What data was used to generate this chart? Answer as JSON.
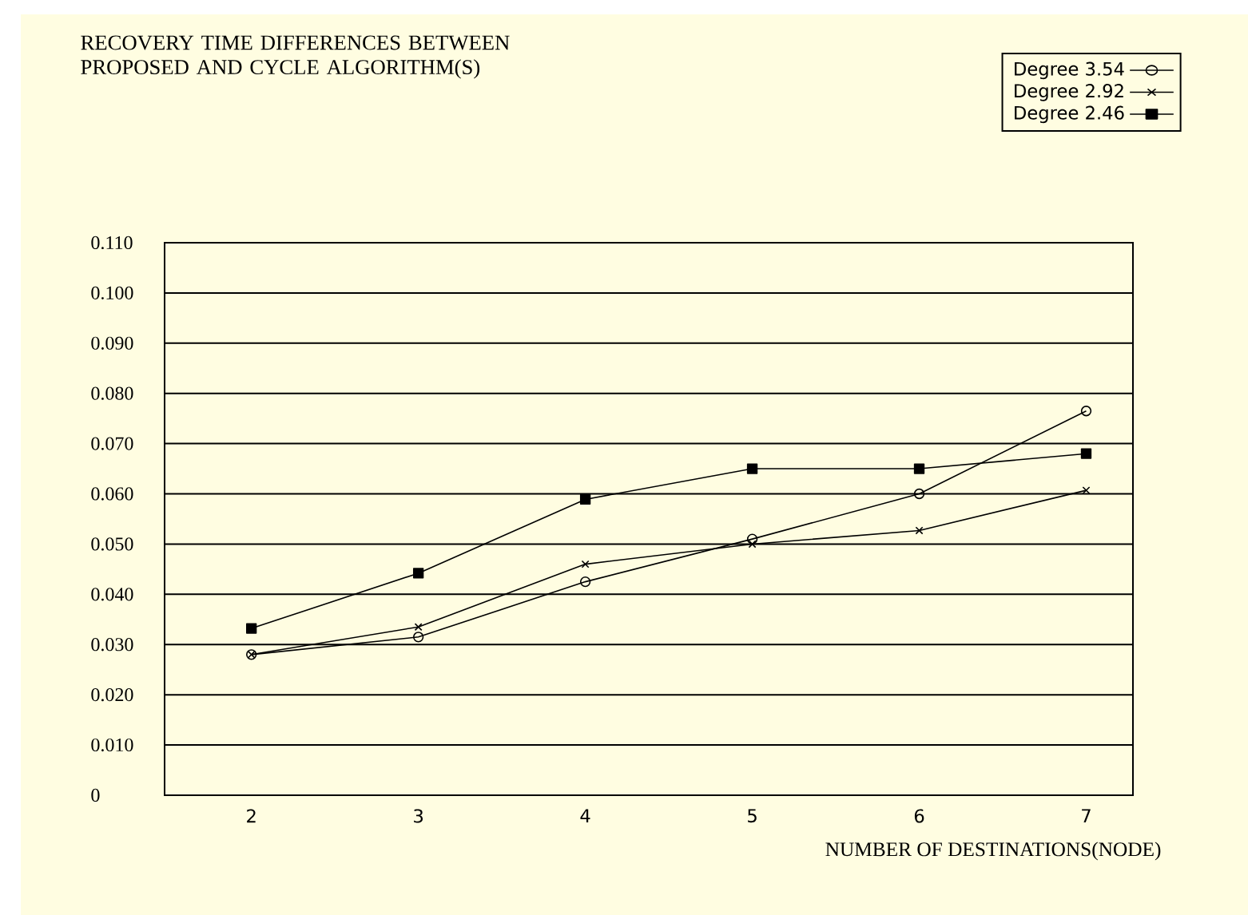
{
  "chart_data": {
    "type": "line",
    "title": "RECOVERY TIME DIFFERENCES BETWEEN PROPOSED AND CYCLE ALGORITHM(S)",
    "xlabel": "NUMBER OF DESTINATIONS(NODE)",
    "categories": [
      "2",
      "3",
      "4",
      "5",
      "6",
      "7"
    ],
    "series": [
      {
        "name": "Degree 3.54",
        "color": "#000000",
        "marker": "circle",
        "values": [
          0.028,
          0.0315,
          0.0425,
          0.051,
          0.06,
          0.0765
        ]
      },
      {
        "name": "Degree 2.92",
        "color": "#000000",
        "marker": "cross",
        "values": [
          0.028,
          0.0335,
          0.046,
          0.05,
          0.0527,
          0.0607
        ]
      },
      {
        "name": "Degree 2.46",
        "color": "#000000",
        "marker": "square",
        "values": [
          0.0332,
          0.0442,
          0.0589,
          0.065,
          0.065,
          0.068
        ]
      }
    ],
    "ylim": [
      0,
      0.11
    ],
    "yticks": [
      {
        "value": 0,
        "label": "0"
      },
      {
        "value": 0.01,
        "label": "0.010"
      },
      {
        "value": 0.02,
        "label": "0.020"
      },
      {
        "value": 0.03,
        "label": "0.030"
      },
      {
        "value": 0.04,
        "label": "0.040"
      },
      {
        "value": 0.05,
        "label": "0.050"
      },
      {
        "value": 0.06,
        "label": "0.060"
      },
      {
        "value": 0.07,
        "label": "0.070"
      },
      {
        "value": 0.08,
        "label": "0.080"
      },
      {
        "value": 0.09,
        "label": "0.090"
      },
      {
        "value": 0.1,
        "label": "0.100"
      },
      {
        "value": 0.11,
        "label": "0.110"
      }
    ],
    "grid": "y",
    "legend": "top right"
  }
}
